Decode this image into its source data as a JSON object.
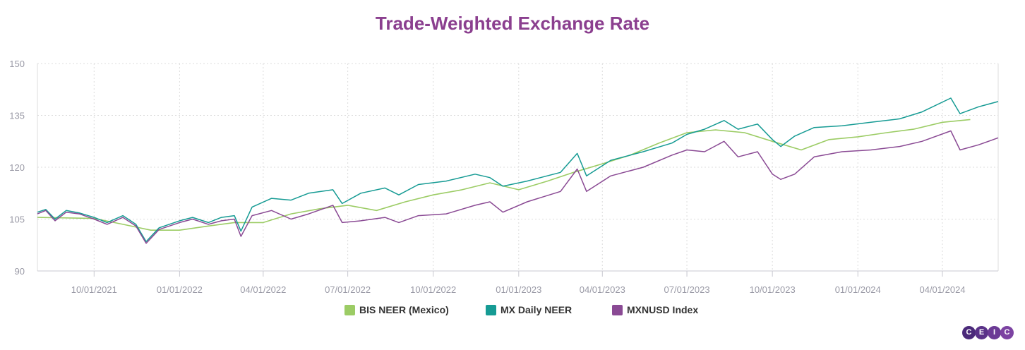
{
  "chart_data": {
    "type": "line",
    "title": "Trade-Weighted Exchange Rate",
    "xlabel": "",
    "ylabel": "",
    "ylim": [
      90,
      150
    ],
    "yticks": [
      "150",
      "135",
      "120",
      "105",
      "90"
    ],
    "xlim": [
      "2021-08-01",
      "2024-05-31"
    ],
    "xticks": [
      "10/01/2021",
      "01/01/2022",
      "04/01/2022",
      "07/01/2022",
      "10/01/2022",
      "01/01/2023",
      "04/01/2023",
      "07/01/2023",
      "10/01/2023",
      "01/01/2024",
      "04/01/2024"
    ],
    "grid": true,
    "legend_position": "bottom",
    "series": [
      {
        "name": "BIS NEER (Mexico)",
        "color": "#9ccc65",
        "points": [
          [
            "2021-08-01",
            105.5
          ],
          [
            "2021-10-01",
            105.2
          ],
          [
            "2021-11-01",
            103.5
          ],
          [
            "2021-12-01",
            101.8
          ],
          [
            "2022-01-01",
            101.8
          ],
          [
            "2022-02-01",
            103.0
          ],
          [
            "2022-03-01",
            104.0
          ],
          [
            "2022-04-01",
            104.0
          ],
          [
            "2022-05-01",
            106.5
          ],
          [
            "2022-06-01",
            108.0
          ],
          [
            "2022-07-01",
            109.0
          ],
          [
            "2022-08-01",
            107.5
          ],
          [
            "2022-09-01",
            110.0
          ],
          [
            "2022-10-01",
            112.0
          ],
          [
            "2022-11-01",
            113.5
          ],
          [
            "2022-12-01",
            115.5
          ],
          [
            "2023-01-01",
            113.5
          ],
          [
            "2023-02-01",
            116.0
          ],
          [
            "2023-03-01",
            118.5
          ],
          [
            "2023-04-01",
            121.0
          ],
          [
            "2023-05-01",
            123.5
          ],
          [
            "2023-06-01",
            127.0
          ],
          [
            "2023-07-01",
            130.0
          ],
          [
            "2023-08-01",
            130.8
          ],
          [
            "2023-09-01",
            130.0
          ],
          [
            "2023-10-01",
            127.5
          ],
          [
            "2023-11-01",
            125.0
          ],
          [
            "2023-12-01",
            128.0
          ],
          [
            "2024-01-01",
            128.8
          ],
          [
            "2024-02-01",
            130.0
          ],
          [
            "2024-03-01",
            131.0
          ],
          [
            "2024-04-01",
            133.0
          ],
          [
            "2024-05-01",
            133.8
          ]
        ]
      },
      {
        "name": "MX Daily NEER",
        "color": "#169b94",
        "points": [
          [
            "2021-08-01",
            107.0
          ],
          [
            "2021-08-10",
            107.8
          ],
          [
            "2021-08-20",
            105.0
          ],
          [
            "2021-09-01",
            107.5
          ],
          [
            "2021-09-15",
            106.8
          ],
          [
            "2021-10-01",
            105.5
          ],
          [
            "2021-10-15",
            104.0
          ],
          [
            "2021-11-01",
            106.0
          ],
          [
            "2021-11-15",
            103.5
          ],
          [
            "2021-11-26",
            98.5
          ],
          [
            "2021-12-10",
            102.5
          ],
          [
            "2022-01-01",
            104.5
          ],
          [
            "2022-01-15",
            105.5
          ],
          [
            "2022-02-01",
            104.0
          ],
          [
            "2022-02-15",
            105.5
          ],
          [
            "2022-03-01",
            106.0
          ],
          [
            "2022-03-08",
            101.5
          ],
          [
            "2022-03-20",
            108.5
          ],
          [
            "2022-04-10",
            111.0
          ],
          [
            "2022-05-01",
            110.5
          ],
          [
            "2022-05-20",
            112.5
          ],
          [
            "2022-06-15",
            113.5
          ],
          [
            "2022-06-25",
            109.5
          ],
          [
            "2022-07-15",
            112.5
          ],
          [
            "2022-08-10",
            114.0
          ],
          [
            "2022-08-25",
            112.0
          ],
          [
            "2022-09-15",
            115.0
          ],
          [
            "2022-10-15",
            116.0
          ],
          [
            "2022-11-15",
            118.0
          ],
          [
            "2022-12-01",
            117.0
          ],
          [
            "2022-12-15",
            114.5
          ],
          [
            "2023-01-10",
            116.0
          ],
          [
            "2023-02-15",
            118.5
          ],
          [
            "2023-03-05",
            124.0
          ],
          [
            "2023-03-15",
            117.5
          ],
          [
            "2023-04-10",
            122.0
          ],
          [
            "2023-05-15",
            124.5
          ],
          [
            "2023-06-15",
            127.0
          ],
          [
            "2023-07-01",
            129.5
          ],
          [
            "2023-07-20",
            131.0
          ],
          [
            "2023-08-10",
            133.5
          ],
          [
            "2023-08-25",
            131.0
          ],
          [
            "2023-09-15",
            132.5
          ],
          [
            "2023-10-01",
            128.0
          ],
          [
            "2023-10-10",
            126.0
          ],
          [
            "2023-10-25",
            129.0
          ],
          [
            "2023-11-15",
            131.5
          ],
          [
            "2023-12-15",
            132.0
          ],
          [
            "2024-01-15",
            133.0
          ],
          [
            "2024-02-15",
            134.0
          ],
          [
            "2024-03-10",
            136.0
          ],
          [
            "2024-04-10",
            140.0
          ],
          [
            "2024-04-20",
            135.5
          ],
          [
            "2024-05-10",
            137.5
          ],
          [
            "2024-05-31",
            139.0
          ]
        ]
      },
      {
        "name": "MXNUSD Index",
        "color": "#8a4a94",
        "points": [
          [
            "2021-08-01",
            106.5
          ],
          [
            "2021-08-10",
            107.5
          ],
          [
            "2021-08-20",
            104.5
          ],
          [
            "2021-09-01",
            107.0
          ],
          [
            "2021-09-15",
            106.5
          ],
          [
            "2021-10-01",
            105.0
          ],
          [
            "2021-10-15",
            103.5
          ],
          [
            "2021-11-01",
            105.5
          ],
          [
            "2021-11-15",
            103.0
          ],
          [
            "2021-11-26",
            98.0
          ],
          [
            "2021-12-10",
            102.0
          ],
          [
            "2022-01-01",
            104.0
          ],
          [
            "2022-01-15",
            105.0
          ],
          [
            "2022-02-01",
            103.5
          ],
          [
            "2022-02-15",
            104.5
          ],
          [
            "2022-03-01",
            105.0
          ],
          [
            "2022-03-08",
            100.0
          ],
          [
            "2022-03-20",
            106.0
          ],
          [
            "2022-04-10",
            107.5
          ],
          [
            "2022-05-01",
            105.0
          ],
          [
            "2022-05-20",
            106.5
          ],
          [
            "2022-06-15",
            109.0
          ],
          [
            "2022-06-25",
            104.0
          ],
          [
            "2022-07-15",
            104.5
          ],
          [
            "2022-08-10",
            105.5
          ],
          [
            "2022-08-25",
            104.0
          ],
          [
            "2022-09-15",
            106.0
          ],
          [
            "2022-10-15",
            106.5
          ],
          [
            "2022-11-15",
            109.0
          ],
          [
            "2022-12-01",
            110.0
          ],
          [
            "2022-12-15",
            107.0
          ],
          [
            "2023-01-10",
            110.0
          ],
          [
            "2023-02-15",
            113.0
          ],
          [
            "2023-03-05",
            119.5
          ],
          [
            "2023-03-15",
            113.0
          ],
          [
            "2023-04-10",
            117.5
          ],
          [
            "2023-05-15",
            120.0
          ],
          [
            "2023-06-15",
            123.5
          ],
          [
            "2023-07-01",
            125.0
          ],
          [
            "2023-07-20",
            124.5
          ],
          [
            "2023-08-10",
            127.5
          ],
          [
            "2023-08-25",
            123.0
          ],
          [
            "2023-09-15",
            124.5
          ],
          [
            "2023-10-01",
            118.0
          ],
          [
            "2023-10-10",
            116.5
          ],
          [
            "2023-10-25",
            118.0
          ],
          [
            "2023-11-15",
            123.0
          ],
          [
            "2023-12-15",
            124.5
          ],
          [
            "2024-01-15",
            125.0
          ],
          [
            "2024-02-15",
            126.0
          ],
          [
            "2024-03-10",
            127.5
          ],
          [
            "2024-04-10",
            130.5
          ],
          [
            "2024-04-20",
            125.0
          ],
          [
            "2024-05-10",
            126.5
          ],
          [
            "2024-05-31",
            128.5
          ]
        ]
      }
    ]
  },
  "brand": {
    "letters": [
      "C",
      "E",
      "I",
      "C"
    ]
  }
}
